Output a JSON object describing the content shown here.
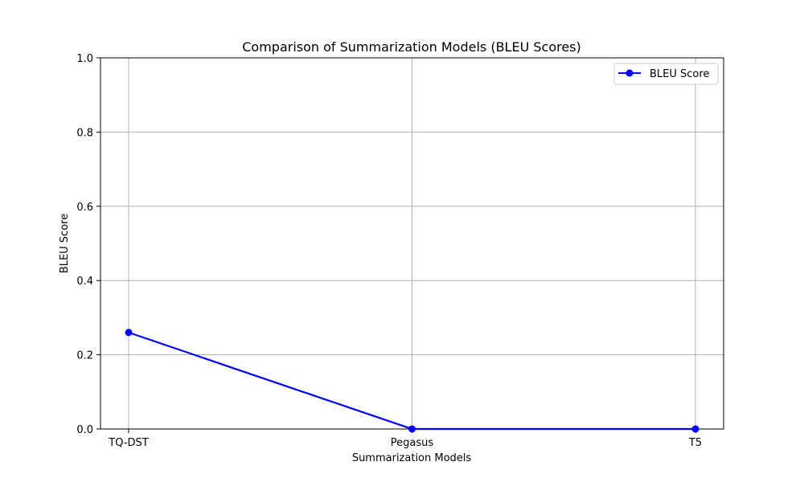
{
  "chart_data": {
    "type": "line",
    "title": "Comparison of Summarization Models (BLEU Scores)",
    "xlabel": "Summarization Models",
    "ylabel": "BLEU Score",
    "categories": [
      "TQ-DST",
      "Pegasus",
      "T5"
    ],
    "series": [
      {
        "name": "BLEU Score",
        "values": [
          0.26,
          0.0,
          0.0
        ],
        "color": "#0000ff"
      }
    ],
    "ylim": [
      0,
      1.0
    ],
    "yticks": [
      "0.0",
      "0.2",
      "0.4",
      "0.6",
      "0.8",
      "1.0"
    ],
    "grid": true,
    "legend_position": "top-right"
  }
}
